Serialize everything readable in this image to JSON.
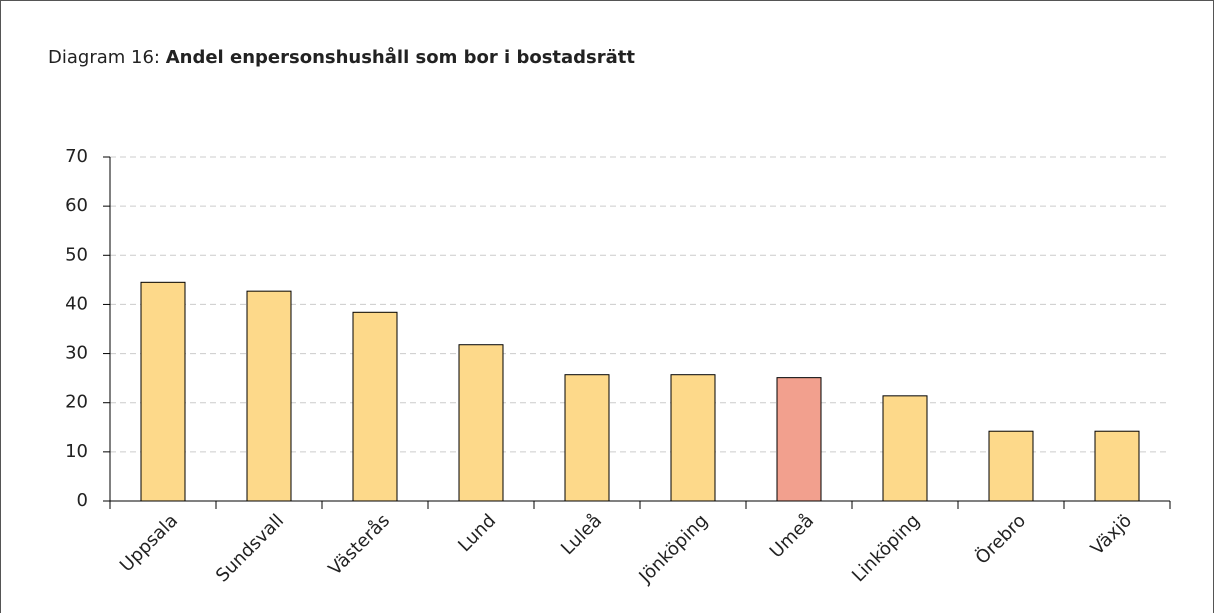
{
  "chart_data": {
    "type": "bar",
    "label": "Diagram 16:",
    "title": "Andel enpersonshushåll som bor i bostadsrätt",
    "categories": [
      "Uppsala",
      "Sundsvall",
      "Västerås",
      "Lund",
      "Luleå",
      "Jönköping",
      "Umeå",
      "Linköping",
      "Örebro",
      "Växjö"
    ],
    "values": [
      44.5,
      42.7,
      38.4,
      31.8,
      25.7,
      25.7,
      25.1,
      21.4,
      14.2,
      14.2
    ],
    "colors": [
      "#fdd98a",
      "#fdd98a",
      "#fdd98a",
      "#fdd98a",
      "#fdd98a",
      "#fdd98a",
      "#f2a08e",
      "#fdd98a",
      "#fdd98a",
      "#fdd98a"
    ],
    "ylim": [
      0,
      70
    ],
    "yticks": [
      0,
      10,
      20,
      30,
      40,
      50,
      60,
      70
    ],
    "grid": true
  }
}
